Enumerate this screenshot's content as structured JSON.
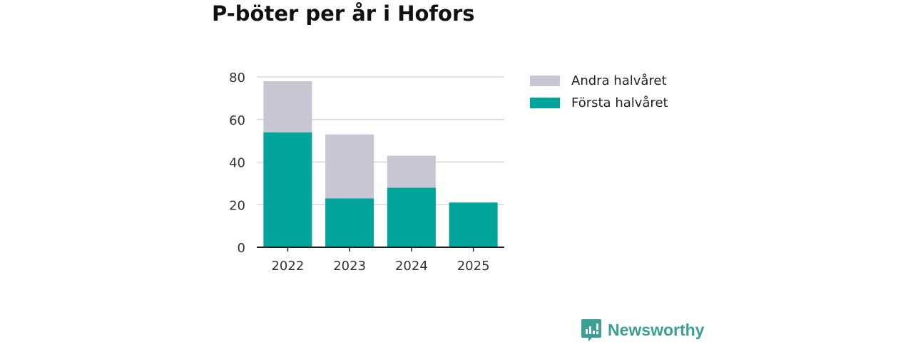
{
  "title": "P-böter per år i Hofors",
  "brand": {
    "name": "Newsworthy",
    "icon": "newsworthy-logo-icon",
    "color": "#3aa096"
  },
  "colors": {
    "first_half": "#00a49b",
    "second_half": "#c7c6d3",
    "grid": "#d9d9d9",
    "axis": "#222222"
  },
  "legend": [
    {
      "label": "Andra halvåret",
      "color": "#c7c6d3"
    },
    {
      "label": "Första halvåret",
      "color": "#00a49b"
    }
  ],
  "chart_data": {
    "type": "bar",
    "stacked": true,
    "title": "P-böter per år i Hofors",
    "categories": [
      "2022",
      "2023",
      "2024",
      "2025"
    ],
    "series": [
      {
        "name": "Första halvåret",
        "values": [
          54,
          23,
          28,
          21
        ],
        "color": "#00a49b"
      },
      {
        "name": "Andra halvåret",
        "values": [
          24,
          30,
          15,
          0
        ],
        "color": "#c7c6d3"
      }
    ],
    "ylim": [
      0,
      80
    ],
    "yticks": [
      "0",
      "20",
      "40",
      "60",
      "80"
    ],
    "grid": true,
    "legend_position": "right"
  }
}
